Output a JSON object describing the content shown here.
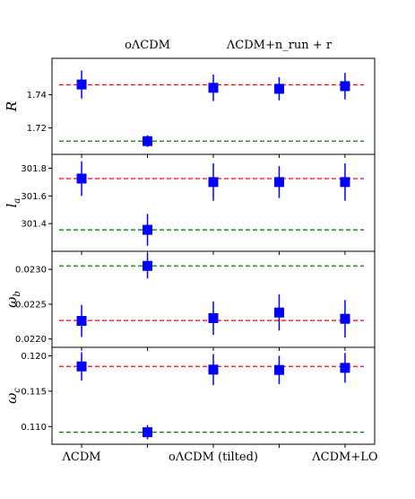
{
  "chart_data": {
    "type": "scatter",
    "categories_bottom": [
      "ΛCDM",
      "oΛCDM (tilted)",
      "ΛCDM+LO"
    ],
    "categories_top": [
      "oΛCDM",
      "ΛCDM+n_run + r"
    ],
    "x_positions": [
      1,
      2,
      3,
      4,
      5
    ],
    "bottom_label_positions": [
      1,
      3,
      5
    ],
    "top_label_positions": [
      2,
      4
    ],
    "colors": {
      "marker": "#0000ff",
      "error": "#0000ff",
      "ref_red": "#ff0000",
      "ref_green": "#008000",
      "frame": "#000000"
    },
    "panels": [
      {
        "ylabel_main": "R",
        "ylabel_sub": "",
        "ylim": [
          1.704,
          1.762
        ],
        "yticks": [
          "1.72",
          "1.74"
        ],
        "ytick_values": [
          1.72,
          1.74
        ],
        "red_line": 1.746,
        "green_line": 1.712,
        "values": [
          1.7462,
          1.712,
          1.7442,
          1.7436,
          1.7452
        ],
        "errors": [
          0.0085,
          0.0035,
          0.008,
          0.007,
          0.008
        ]
      },
      {
        "ylabel_main": "l",
        "ylabel_sub": "a",
        "ylim": [
          301.2,
          301.9
        ],
        "yticks": [
          "301.4",
          "301.6",
          "301.8"
        ],
        "ytick_values": [
          301.4,
          301.6,
          301.8
        ],
        "red_line": 301.725,
        "green_line": 301.355,
        "values": [
          301.725,
          301.355,
          301.7,
          301.7,
          301.7
        ],
        "errors": [
          0.125,
          0.115,
          0.135,
          0.115,
          0.135
        ]
      },
      {
        "ylabel_main": "ω",
        "ylabel_sub": "b",
        "ylim": [
          0.02188,
          0.02326
        ],
        "yticks": [
          "0.0220",
          "0.0225",
          "0.0230"
        ],
        "ytick_values": [
          0.022,
          0.0225,
          0.023
        ],
        "red_line": 0.022265,
        "green_line": 0.02305,
        "values": [
          0.02226,
          0.02305,
          0.0223,
          0.02238,
          0.02229
        ],
        "errors": [
          0.00023,
          0.00018,
          0.00024,
          0.00026,
          0.00027
        ]
      },
      {
        "ylabel_main": "ω",
        "ylabel_sub": "c",
        "ylim": [
          0.1075,
          0.1212
        ],
        "yticks": [
          "0.110",
          "0.115",
          "0.120"
        ],
        "ytick_values": [
          0.11,
          0.115,
          0.12
        ],
        "red_line": 0.1185,
        "green_line": 0.1092,
        "values": [
          0.1185,
          0.1092,
          0.11805,
          0.118,
          0.1183
        ],
        "errors": [
          0.002,
          0.001,
          0.0022,
          0.002,
          0.0021
        ]
      }
    ]
  }
}
